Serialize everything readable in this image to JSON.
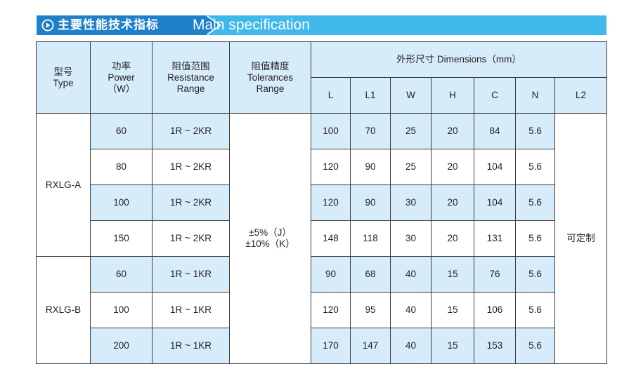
{
  "header": {
    "title_cn": "主要性能技术指标",
    "title_en": "Main specification",
    "icon": "play-circle-icon",
    "colors": {
      "dark": "#1f7fc8",
      "light": "#3fb8ec",
      "cell_blue": "#d6ecfa"
    }
  },
  "table": {
    "col_type": {
      "cn": "型号",
      "en": "Type"
    },
    "col_power": {
      "cn": "功率",
      "en": "Power",
      "unit": "（W）"
    },
    "col_resistance": {
      "cn": "阻值范围",
      "en1": "Resistance",
      "en2": "Range"
    },
    "col_tolerance": {
      "cn": "阻值精度",
      "en1": "Tolerances",
      "en2": "Range"
    },
    "col_dimensions": "外形尺寸 Dimensions（mm）",
    "dim_cols": [
      "L",
      "L1",
      "W",
      "H",
      "C",
      "N",
      "L2"
    ],
    "tolerance_values": [
      "±5%（J）",
      "±10%（K）"
    ],
    "l2_value": "可定制",
    "groups": [
      {
        "type": "RXLG-A",
        "rows": [
          {
            "power": "60",
            "range": "1R ~ 2KR",
            "dims": [
              "100",
              "70",
              "25",
              "20",
              "84",
              "5.6"
            ]
          },
          {
            "power": "80",
            "range": "1R ~ 2KR",
            "dims": [
              "120",
              "90",
              "25",
              "20",
              "104",
              "5.6"
            ]
          },
          {
            "power": "100",
            "range": "1R ~ 2KR",
            "dims": [
              "120",
              "90",
              "30",
              "20",
              "104",
              "5.6"
            ]
          },
          {
            "power": "150",
            "range": "1R ~ 2KR",
            "dims": [
              "148",
              "118",
              "30",
              "20",
              "131",
              "5.6"
            ]
          }
        ]
      },
      {
        "type": "RXLG-B",
        "rows": [
          {
            "power": "60",
            "range": "1R ~ 1KR",
            "dims": [
              "90",
              "68",
              "40",
              "15",
              "76",
              "5.6"
            ]
          },
          {
            "power": "100",
            "range": "1R ~ 1KR",
            "dims": [
              "120",
              "95",
              "40",
              "15",
              "106",
              "5.6"
            ]
          },
          {
            "power": "200",
            "range": "1R ~ 1KR",
            "dims": [
              "170",
              "147",
              "40",
              "15",
              "153",
              "5.6"
            ]
          }
        ]
      }
    ]
  }
}
